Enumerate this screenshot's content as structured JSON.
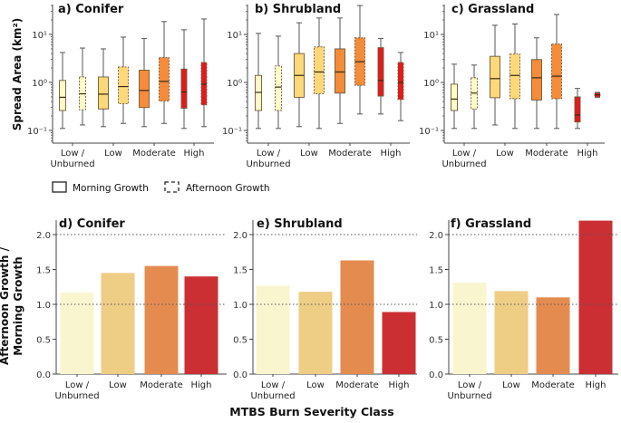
{
  "chart_data": [
    {
      "type": "box",
      "panel": "a",
      "title": "a) Conifer",
      "ylabel": "Spread Area (km²)",
      "yscale": "log",
      "ylim": [
        0.06,
        30
      ],
      "yticks": [
        "10⁻¹",
        "10⁰",
        "10¹"
      ],
      "categories": [
        "Low / Unburned",
        "Low",
        "Moderate",
        "High"
      ],
      "series": [
        {
          "name": "Morning Growth",
          "boxes": [
            {
              "whislo": 0.11,
              "q1": 0.26,
              "med": 0.49,
              "q3": 1.1,
              "whishi": 4.2
            },
            {
              "whislo": 0.12,
              "q1": 0.28,
              "med": 0.57,
              "q3": 1.3,
              "whishi": 5.0
            },
            {
              "whislo": 0.12,
              "q1": 0.3,
              "med": 0.68,
              "q3": 1.8,
              "whishi": 8.2
            },
            {
              "whislo": 0.11,
              "q1": 0.29,
              "med": 0.63,
              "q3": 1.9,
              "whishi": 12.5
            }
          ]
        },
        {
          "name": "Afternoon Growth",
          "boxes": [
            {
              "whislo": 0.13,
              "q1": 0.27,
              "med": 0.58,
              "q3": 1.3,
              "whishi": 5.2
            },
            {
              "whislo": 0.14,
              "q1": 0.36,
              "med": 0.82,
              "q3": 2.1,
              "whishi": 8.8
            },
            {
              "whislo": 0.14,
              "q1": 0.41,
              "med": 1.05,
              "q3": 3.3,
              "whishi": 18.5
            },
            {
              "whislo": 0.12,
              "q1": 0.34,
              "med": 0.92,
              "q3": 2.6,
              "whishi": 21.0
            }
          ]
        }
      ]
    },
    {
      "type": "box",
      "panel": "b",
      "title": "b) Shrubland",
      "yscale": "log",
      "ylim": [
        0.06,
        30
      ],
      "yticks": [
        "10⁻¹",
        "10⁰",
        "10¹"
      ],
      "categories": [
        "Low / Unburned",
        "Low",
        "Moderate",
        "High"
      ],
      "series": [
        {
          "name": "Morning Growth",
          "boxes": [
            {
              "whislo": 0.11,
              "q1": 0.26,
              "med": 0.62,
              "q3": 1.4,
              "whishi": 10.5
            },
            {
              "whislo": 0.12,
              "q1": 0.49,
              "med": 1.4,
              "q3": 4.0,
              "whishi": 17.5
            },
            {
              "whislo": 0.14,
              "q1": 0.6,
              "med": 1.65,
              "q3": 5.0,
              "whishi": 22.0
            },
            {
              "whislo": 0.22,
              "q1": 0.52,
              "med": 1.1,
              "q3": 5.3,
              "whishi": 8.2
            }
          ]
        },
        {
          "name": "Afternoon Growth",
          "boxes": [
            {
              "whislo": 0.11,
              "q1": 0.26,
              "med": 0.8,
              "q3": 2.2,
              "whishi": 9.2
            },
            {
              "whislo": 0.11,
              "q1": 0.58,
              "med": 1.65,
              "q3": 5.5,
              "whishi": 22.0
            },
            {
              "whislo": 0.22,
              "q1": 0.87,
              "med": 2.7,
              "q3": 8.5,
              "whishi": 40.0
            },
            {
              "whislo": 0.16,
              "q1": 0.44,
              "med": 1.0,
              "q3": 2.6,
              "whishi": 4.2
            }
          ]
        }
      ]
    },
    {
      "type": "box",
      "panel": "c",
      "title": "c) Grassland",
      "yscale": "log",
      "ylim": [
        0.06,
        30
      ],
      "yticks": [
        "10⁻¹",
        "10⁰",
        "10¹"
      ],
      "categories": [
        "Low / Unburned",
        "Low",
        "Moderate",
        "High"
      ],
      "series": [
        {
          "name": "Morning Growth",
          "boxes": [
            {
              "whislo": 0.11,
              "q1": 0.26,
              "med": 0.45,
              "q3": 0.92,
              "whishi": 2.4
            },
            {
              "whislo": 0.13,
              "q1": 0.48,
              "med": 1.2,
              "q3": 3.5,
              "whishi": 15.5
            },
            {
              "whislo": 0.11,
              "q1": 0.43,
              "med": 1.25,
              "q3": 3.0,
              "whishi": 8.5
            },
            {
              "whislo": 0.11,
              "q1": 0.15,
              "med": 0.21,
              "q3": 0.5,
              "whishi": 0.75
            }
          ]
        },
        {
          "name": "Afternoon Growth",
          "boxes": [
            {
              "whislo": 0.11,
              "q1": 0.28,
              "med": 0.6,
              "q3": 1.25,
              "whishi": 2.3
            },
            {
              "whislo": 0.11,
              "q1": 0.46,
              "med": 1.4,
              "q3": 3.9,
              "whishi": 16.5
            },
            {
              "whislo": 0.11,
              "q1": 0.46,
              "med": 1.35,
              "q3": 6.3,
              "whishi": 26.0
            },
            {
              "whislo": 0.49,
              "q1": 0.5,
              "med": 0.55,
              "q3": 0.6,
              "whishi": 0.62
            }
          ]
        }
      ]
    },
    {
      "type": "bar",
      "panel": "d",
      "title": "d) Conifer",
      "ylabel": "Afternoon Growth / Morning Growth",
      "ylim": [
        0,
        2.2
      ],
      "yticks": [
        "0.0",
        "0.5",
        "1.0",
        "1.5",
        "2.0"
      ],
      "reference_lines": [
        1.0,
        2.0
      ],
      "categories": [
        "Low / Unburned",
        "Low",
        "Moderate",
        "High"
      ],
      "values": [
        1.17,
        1.45,
        1.55,
        1.4
      ]
    },
    {
      "type": "bar",
      "panel": "e",
      "title": "e) Shrubland",
      "ylim": [
        0,
        2.2
      ],
      "yticks": [
        "0.0",
        "0.5",
        "1.0",
        "1.5",
        "2.0"
      ],
      "reference_lines": [
        1.0,
        2.0
      ],
      "categories": [
        "Low / Unburned",
        "Low",
        "Moderate",
        "High"
      ],
      "values": [
        1.27,
        1.18,
        1.63,
        0.89
      ]
    },
    {
      "type": "bar",
      "panel": "f",
      "title": "f) Grassland",
      "ylim": [
        0,
        2.2
      ],
      "yticks": [
        "0.0",
        "0.5",
        "1.0",
        "1.5",
        "2.0"
      ],
      "reference_lines": [
        1.0,
        2.0
      ],
      "categories": [
        "Low / Unburned",
        "Low",
        "Moderate",
        "High"
      ],
      "values": [
        1.31,
        1.19,
        1.1,
        2.2
      ]
    }
  ],
  "legend": {
    "morning": "Morning Growth",
    "afternoon": "Afternoon Growth"
  },
  "box_ylabel": "Spread Area (km²)",
  "bar_ylabel_line1": "Afternoon Growth /",
  "bar_ylabel_line2": "Morning Growth",
  "xlabel": "MTBS Burn Severity Class",
  "category_labels": {
    "c0_line1": "Low /",
    "c0_line2": "Unburned",
    "c1": "Low",
    "c2": "Moderate",
    "c3": "High"
  },
  "colors": {
    "box": [
      "#fdfbc8",
      "#fdd879",
      "#f68b3a",
      "#e31a1c"
    ],
    "bar": [
      "#f9f6cf",
      "#eecd85",
      "#e48c50",
      "#cb2f33"
    ],
    "whisker": "#555555",
    "axis": "#444444"
  }
}
